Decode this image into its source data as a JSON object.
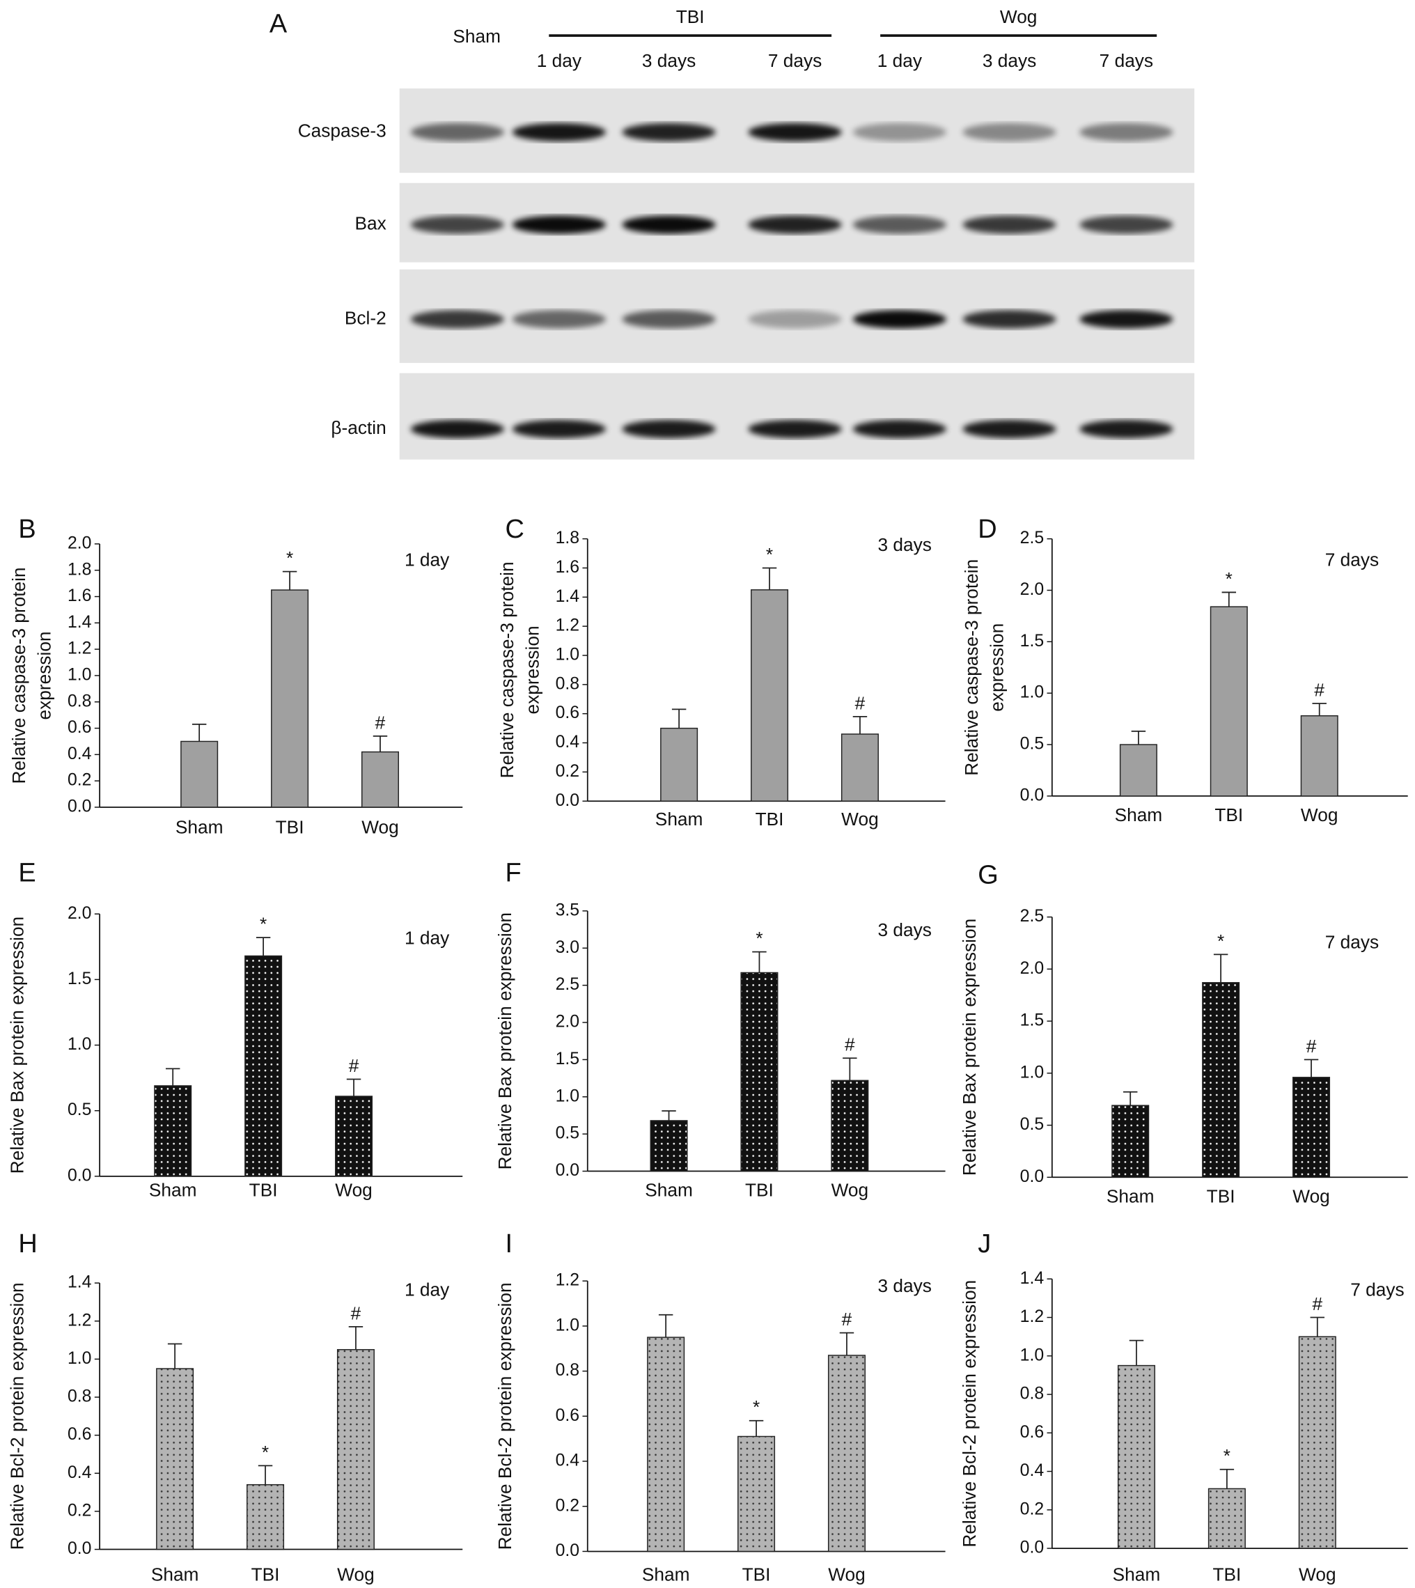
{
  "blot": {
    "panel": "A",
    "sham": "Sham",
    "groups": [
      "TBI",
      "Wog"
    ],
    "lanes": [
      "1 day",
      "3 days",
      "7 days",
      "1 day",
      "3 days",
      "7 days"
    ],
    "rows": [
      "Caspase-3",
      "Bax",
      "Bcl-2",
      "β-actin"
    ]
  },
  "chart_data": [
    {
      "type": "bar",
      "panel": "B",
      "title": "1 day",
      "ylabel": [
        "Relative caspase-3 protein",
        "expression"
      ],
      "categories": [
        "Sham",
        "TBI",
        "Wog"
      ],
      "values": [
        0.5,
        1.65,
        0.42
      ],
      "errors": [
        0.13,
        0.14,
        0.12
      ],
      "markers": [
        null,
        "*",
        "#"
      ],
      "color": "#a0a0a0",
      "dot_color": null,
      "ylim": [
        0,
        2
      ],
      "yticks": [
        {
          "value": 0,
          "label": "0.0"
        },
        0.2,
        0.4,
        0.6,
        0.8,
        {
          "value": 1,
          "label": "1.0"
        },
        1.2,
        1.4,
        1.6,
        1.8,
        {
          "value": 2,
          "label": "2.0"
        }
      ]
    },
    {
      "type": "bar",
      "panel": "C",
      "title": "3 days",
      "ylabel": [
        "Relative caspase-3 protein",
        "expression"
      ],
      "categories": [
        "Sham",
        "TBI",
        "Wog"
      ],
      "values": [
        0.5,
        1.45,
        0.46
      ],
      "errors": [
        0.13,
        0.15,
        0.12
      ],
      "markers": [
        null,
        "*",
        "#"
      ],
      "color": "#a0a0a0",
      "dot_color": null,
      "ylim": [
        0,
        1.8
      ],
      "yticks": [
        {
          "value": 0,
          "label": "0.0"
        },
        0.2,
        0.4,
        0.6,
        0.8,
        {
          "value": 1,
          "label": "1.0"
        },
        1.2,
        1.4,
        1.6,
        1.8
      ]
    },
    {
      "type": "bar",
      "panel": "D",
      "title": "7 days",
      "ylabel": [
        "Relative caspase-3 protein",
        "expression"
      ],
      "categories": [
        "Sham",
        "TBI",
        "Wog"
      ],
      "values": [
        0.5,
        1.84,
        0.78
      ],
      "errors": [
        0.13,
        0.14,
        0.12
      ],
      "markers": [
        null,
        "*",
        "#"
      ],
      "color": "#a0a0a0",
      "dot_color": null,
      "ylim": [
        0,
        2.5
      ],
      "yticks": [
        {
          "value": 0,
          "label": "0.0"
        },
        0.5,
        {
          "value": 1,
          "label": "1.0"
        },
        1.5,
        {
          "value": 2,
          "label": "2.0"
        },
        2.5
      ]
    },
    {
      "type": "bar",
      "panel": "E",
      "title": "1 day",
      "ylabel": [
        "Relative Bax protein expression"
      ],
      "categories": [
        "Sham",
        "TBI",
        "Wog"
      ],
      "values": [
        0.69,
        1.68,
        0.61
      ],
      "errors": [
        0.13,
        0.14,
        0.13
      ],
      "markers": [
        null,
        "*",
        "#"
      ],
      "color": "#111111",
      "dot_color": "#ffffff",
      "ylim": [
        0,
        2
      ],
      "yticks": [
        {
          "value": 0,
          "label": "0.0"
        },
        0.5,
        {
          "value": 1,
          "label": "1.0"
        },
        1.5,
        {
          "value": 2,
          "label": "2.0"
        }
      ]
    },
    {
      "type": "bar",
      "panel": "F",
      "title": "3 days",
      "ylabel": [
        "Relative Bax protein expression"
      ],
      "categories": [
        "Sham",
        "TBI",
        "Wog"
      ],
      "values": [
        0.68,
        2.67,
        1.22
      ],
      "errors": [
        0.13,
        0.28,
        0.3
      ],
      "markers": [
        null,
        "*",
        "#"
      ],
      "color": "#111111",
      "dot_color": "#ffffff",
      "ylim": [
        0,
        3.5
      ],
      "yticks": [
        {
          "value": 0,
          "label": "0.0"
        },
        0.5,
        {
          "value": 1,
          "label": "1.0"
        },
        1.5,
        {
          "value": 2,
          "label": "2.0"
        },
        2.5,
        {
          "value": 3,
          "label": "3.0"
        },
        3.5
      ]
    },
    {
      "type": "bar",
      "panel": "G",
      "title": "7 days",
      "ylabel": [
        "Relative Bax protein expression"
      ],
      "categories": [
        "Sham",
        "TBI",
        "Wog"
      ],
      "values": [
        0.69,
        1.87,
        0.96
      ],
      "errors": [
        0.13,
        0.27,
        0.17
      ],
      "markers": [
        null,
        "*",
        "#"
      ],
      "color": "#111111",
      "dot_color": "#ffffff",
      "ylim": [
        0,
        2.5
      ],
      "yticks": [
        {
          "value": 0,
          "label": "0.0"
        },
        0.5,
        {
          "value": 1,
          "label": "1.0"
        },
        1.5,
        {
          "value": 2,
          "label": "2.0"
        },
        2.5
      ]
    },
    {
      "type": "bar",
      "panel": "H",
      "title": "1 day",
      "ylabel": [
        "Relative Bcl-2 protein expression"
      ],
      "categories": [
        "Sham",
        "TBI",
        "Wog"
      ],
      "values": [
        0.95,
        0.34,
        1.05
      ],
      "errors": [
        0.13,
        0.1,
        0.12
      ],
      "markers": [
        null,
        "*",
        "#"
      ],
      "color": "#b4b4b4",
      "dot_color": "#333333",
      "ylim": [
        0,
        1.4
      ],
      "yticks": [
        {
          "value": 0,
          "label": "0.0"
        },
        0.2,
        0.4,
        0.6,
        0.8,
        {
          "value": 1,
          "label": "1.0"
        },
        1.2,
        1.4
      ]
    },
    {
      "type": "bar",
      "panel": "I",
      "title": "3 days",
      "ylabel": [
        "Relative Bcl-2 protein expression"
      ],
      "categories": [
        "Sham",
        "TBI",
        "Wog"
      ],
      "values": [
        0.95,
        0.51,
        0.87
      ],
      "errors": [
        0.1,
        0.07,
        0.1
      ],
      "markers": [
        null,
        "*",
        "#"
      ],
      "color": "#b4b4b4",
      "dot_color": "#333333",
      "ylim": [
        0,
        1.2
      ],
      "yticks": [
        {
          "value": 0,
          "label": "0.0"
        },
        0.2,
        0.4,
        0.6,
        0.8,
        {
          "value": 1,
          "label": "1.0"
        },
        1.2
      ]
    },
    {
      "type": "bar",
      "panel": "J",
      "title": "7 days",
      "ylabel": [
        "Relative Bcl-2 protein expression"
      ],
      "categories": [
        "Sham",
        "TBI",
        "Wog"
      ],
      "values": [
        0.95,
        0.31,
        1.1
      ],
      "errors": [
        0.13,
        0.1,
        0.1
      ],
      "markers": [
        null,
        "*",
        "#"
      ],
      "color": "#b4b4b4",
      "dot_color": "#333333",
      "ylim": [
        0,
        1.4
      ],
      "yticks": [
        {
          "value": 0,
          "label": "0.0"
        },
        0.2,
        0.4,
        0.6,
        0.8,
        {
          "value": 1,
          "label": "1.0"
        },
        1.2,
        1.4
      ]
    }
  ]
}
